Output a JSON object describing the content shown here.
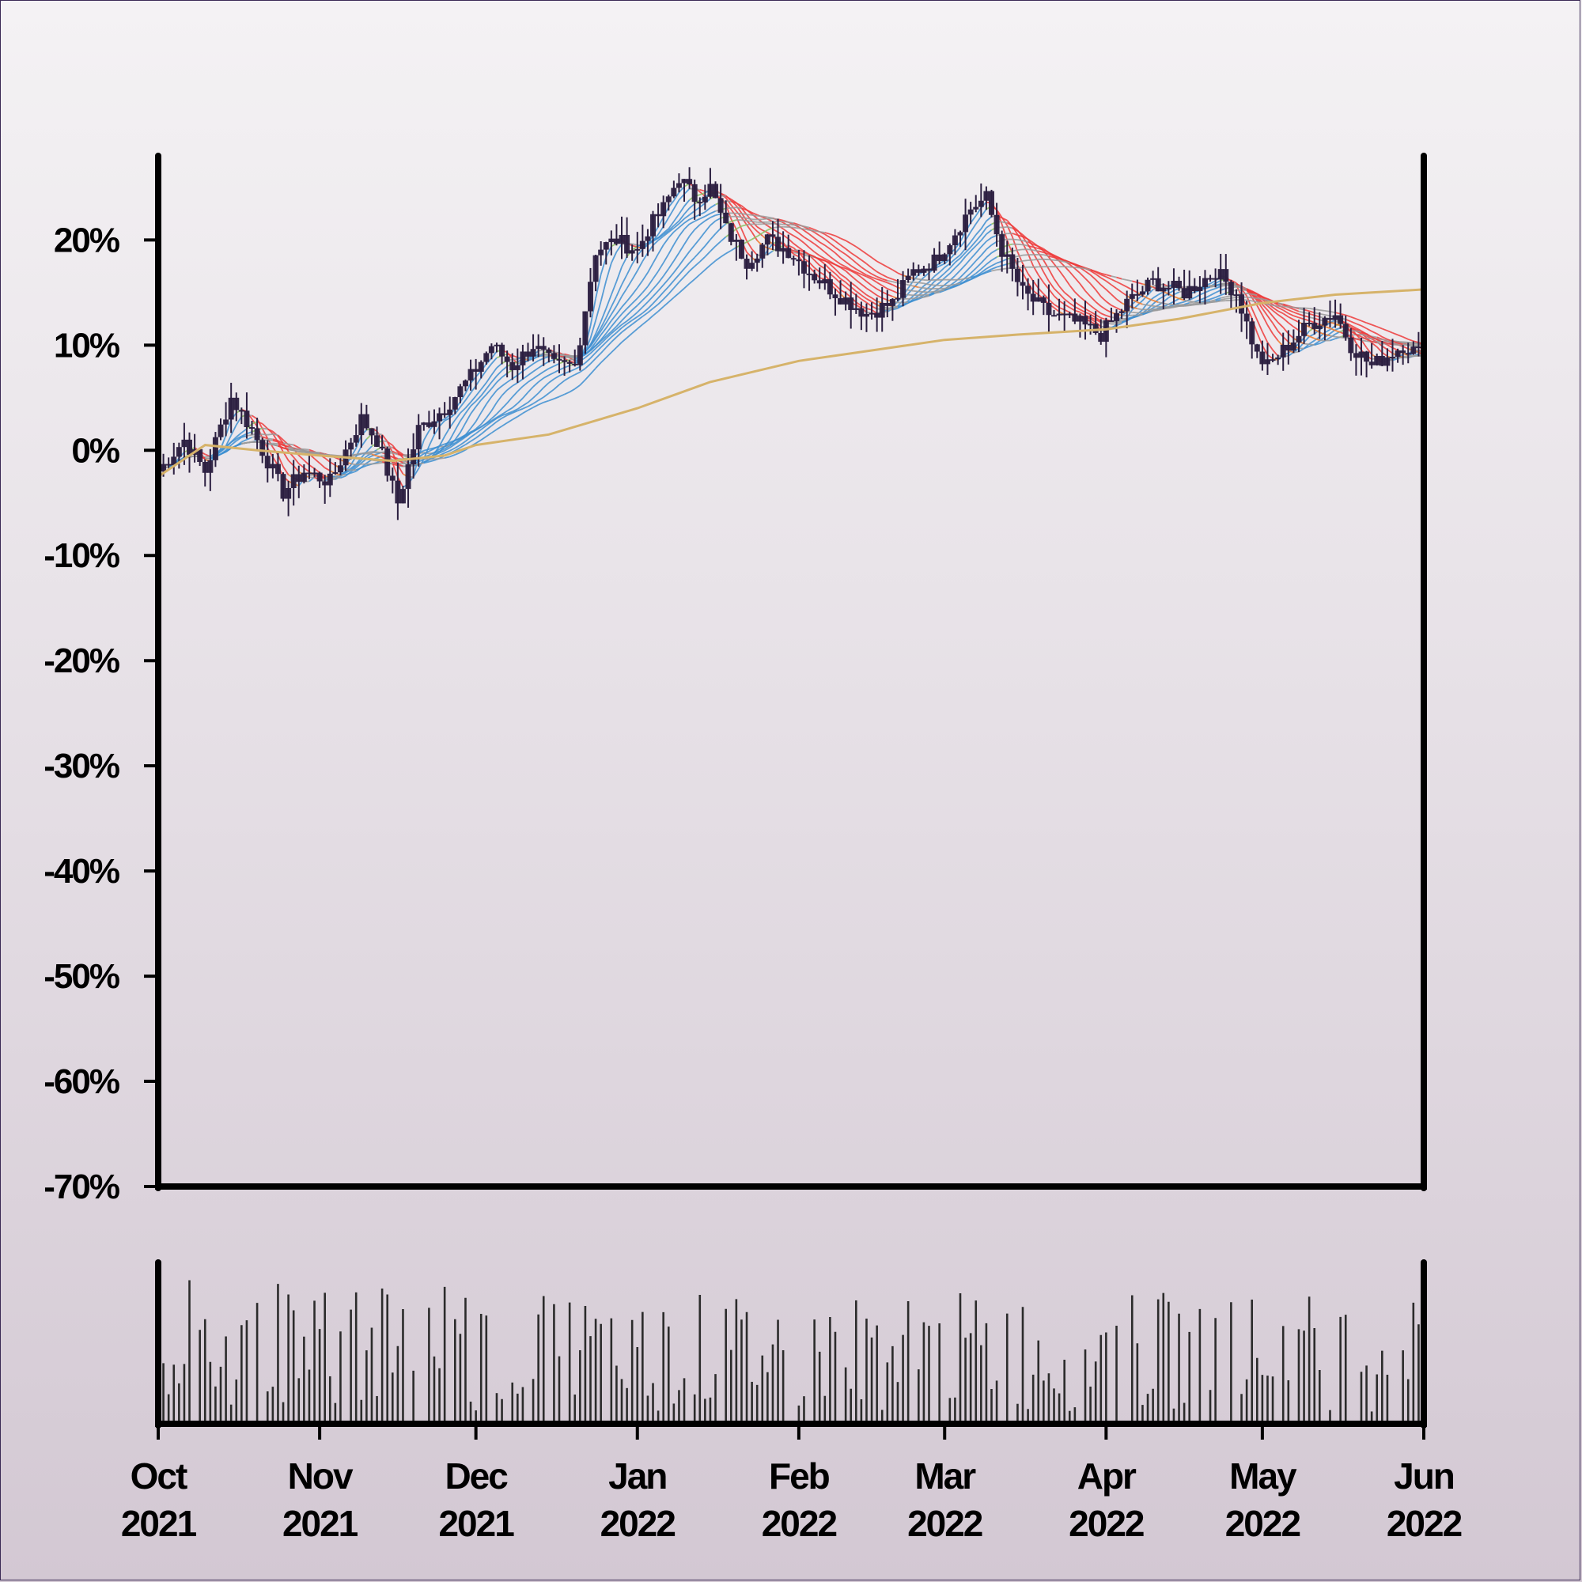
{
  "chart_data": {
    "type": "candlestick",
    "subplots": [
      "price",
      "volume"
    ],
    "y_unit": "%",
    "ylim": [
      -70,
      28
    ],
    "yticks": [
      "20%",
      "10%",
      "0%",
      "-10%",
      "-20%",
      "-30%",
      "-40%",
      "-50%",
      "-60%",
      "-70%"
    ],
    "ytick_values": [
      20,
      10,
      0,
      -10,
      -20,
      -30,
      -40,
      -50,
      -60,
      -70
    ],
    "xlim": [
      "2021-10-01",
      "2022-06-01"
    ],
    "xticks": [
      {
        "month": "Oct",
        "year": "2021",
        "date": "2021-10-01"
      },
      {
        "month": "Nov",
        "year": "2021",
        "date": "2021-11-01"
      },
      {
        "month": "Dec",
        "year": "2021",
        "date": "2021-12-01"
      },
      {
        "month": "Jan",
        "year": "2022",
        "date": "2022-01-01"
      },
      {
        "month": "Feb",
        "year": "2022",
        "date": "2022-02-01"
      },
      {
        "month": "Mar",
        "year": "2022",
        "date": "2022-03-01"
      },
      {
        "month": "Apr",
        "year": "2022",
        "date": "2022-04-01"
      },
      {
        "month": "May",
        "year": "2022",
        "date": "2022-05-01"
      },
      {
        "month": "Jun",
        "year": "2022",
        "date": "2022-06-01"
      }
    ],
    "close_path": [
      [
        "2021-10-01",
        -2
      ],
      [
        "2021-10-06",
        1
      ],
      [
        "2021-10-10",
        -2
      ],
      [
        "2021-10-15",
        5
      ],
      [
        "2021-10-19",
        2
      ],
      [
        "2021-10-25",
        -4
      ],
      [
        "2021-10-29",
        -2
      ],
      [
        "2021-11-03",
        -3
      ],
      [
        "2021-11-06",
        0
      ],
      [
        "2021-11-09",
        3
      ],
      [
        "2021-11-12",
        1
      ],
      [
        "2021-11-16",
        -5
      ],
      [
        "2021-11-20",
        2
      ],
      [
        "2021-11-25",
        4
      ],
      [
        "2021-11-30",
        7
      ],
      [
        "2021-12-04",
        10
      ],
      [
        "2021-12-08",
        8
      ],
      [
        "2021-12-12",
        10
      ],
      [
        "2021-12-16",
        8
      ],
      [
        "2021-12-20",
        8
      ],
      [
        "2021-12-24",
        19
      ],
      [
        "2021-12-28",
        20
      ],
      [
        "2022-01-01",
        19
      ],
      [
        "2022-01-03",
        21
      ],
      [
        "2022-01-06",
        23
      ],
      [
        "2022-01-09",
        26
      ],
      [
        "2022-01-12",
        24
      ],
      [
        "2022-01-15",
        25
      ],
      [
        "2022-01-18",
        21
      ],
      [
        "2022-01-22",
        18
      ],
      [
        "2022-01-26",
        20
      ],
      [
        "2022-01-30",
        19
      ],
      [
        "2022-02-03",
        17
      ],
      [
        "2022-02-08",
        15
      ],
      [
        "2022-02-14",
        13
      ],
      [
        "2022-02-19",
        14
      ],
      [
        "2022-02-23",
        17
      ],
      [
        "2022-02-27",
        18
      ],
      [
        "2022-03-02",
        20
      ],
      [
        "2022-03-06",
        23
      ],
      [
        "2022-03-09",
        24
      ],
      [
        "2022-03-12",
        19
      ],
      [
        "2022-03-16",
        15
      ],
      [
        "2022-03-21",
        13
      ],
      [
        "2022-03-27",
        12
      ],
      [
        "2022-03-31",
        11
      ],
      [
        "2022-04-05",
        14
      ],
      [
        "2022-04-10",
        16
      ],
      [
        "2022-04-16",
        15
      ],
      [
        "2022-04-22",
        17
      ],
      [
        "2022-04-26",
        15
      ],
      [
        "2022-04-30",
        9
      ],
      [
        "2022-05-02",
        8
      ],
      [
        "2022-05-06",
        10
      ],
      [
        "2022-05-10",
        12
      ],
      [
        "2022-05-15",
        13
      ],
      [
        "2022-05-18",
        10
      ],
      [
        "2022-05-22",
        8
      ],
      [
        "2022-05-25",
        9
      ],
      [
        "2022-05-28",
        10
      ],
      [
        "2022-06-01",
        9
      ]
    ],
    "long_ma": [
      [
        "2021-10-01",
        -2.5
      ],
      [
        "2021-10-10",
        0.5
      ],
      [
        "2021-10-20",
        0
      ],
      [
        "2021-11-01",
        -0.5
      ],
      [
        "2021-11-15",
        -1
      ],
      [
        "2021-11-25",
        -0.5
      ],
      [
        "2021-12-01",
        0.5
      ],
      [
        "2021-12-15",
        1.5
      ],
      [
        "2022-01-01",
        4
      ],
      [
        "2022-01-15",
        6.5
      ],
      [
        "2022-02-01",
        8.5
      ],
      [
        "2022-02-15",
        9.5
      ],
      [
        "2022-03-01",
        10.5
      ],
      [
        "2022-03-15",
        11
      ],
      [
        "2022-04-01",
        11.5
      ],
      [
        "2022-04-15",
        12.5
      ],
      [
        "2022-05-01",
        14
      ],
      [
        "2022-05-15",
        14.8
      ],
      [
        "2022-06-01",
        15.3
      ]
    ],
    "volume_ylim": [
      0,
      100
    ]
  }
}
